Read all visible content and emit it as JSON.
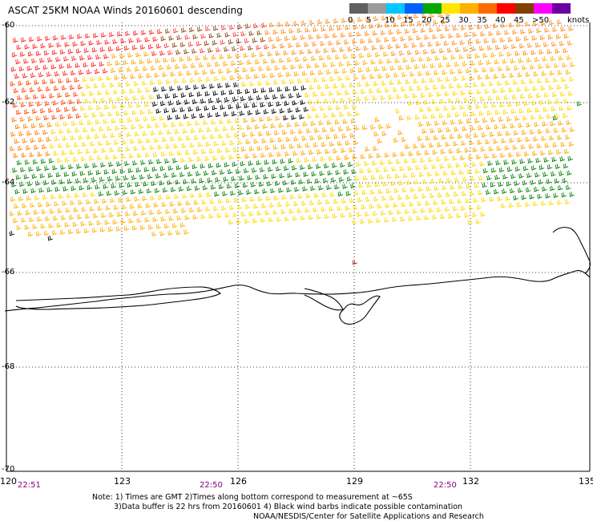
{
  "title": "ASCAT 25KM NOAA Winds 20160601 descending",
  "legend": {
    "speeds": [
      "0",
      "5",
      "10",
      "15",
      "20",
      "25",
      "30",
      "35",
      "40",
      "45",
      ">50"
    ],
    "unit": "knots",
    "colors": [
      "#606060",
      "#9a9a9a",
      "#00c8ff",
      "#0060ff",
      "#00a800",
      "#ffe600",
      "#ffb000",
      "#ff6a00",
      "#ff0000",
      "#804000",
      "#ff00ff",
      "#6a00a0"
    ]
  },
  "axes": {
    "lon_ticks": [
      "120",
      "123",
      "126",
      "129",
      "132",
      "135"
    ],
    "lat_ticks": [
      "-60",
      "-62",
      "-64",
      "-66",
      "-68",
      "-70"
    ]
  },
  "times": [
    "22:51",
    "22:50",
    "22:50"
  ],
  "notes": [
    "Note: 1) Times are GMT 2)Times along bottom correspond to measurement at ~65S",
    "3)Data buffer is 22 hrs from 20160601 4) Black wind barbs indicate possible contamination",
    "NOAA/NESDIS/Center for Satellite Applications and Research"
  ],
  "colors": {
    "coastline": "#000000",
    "grid": "#000000",
    "time_label": "#800080"
  }
}
